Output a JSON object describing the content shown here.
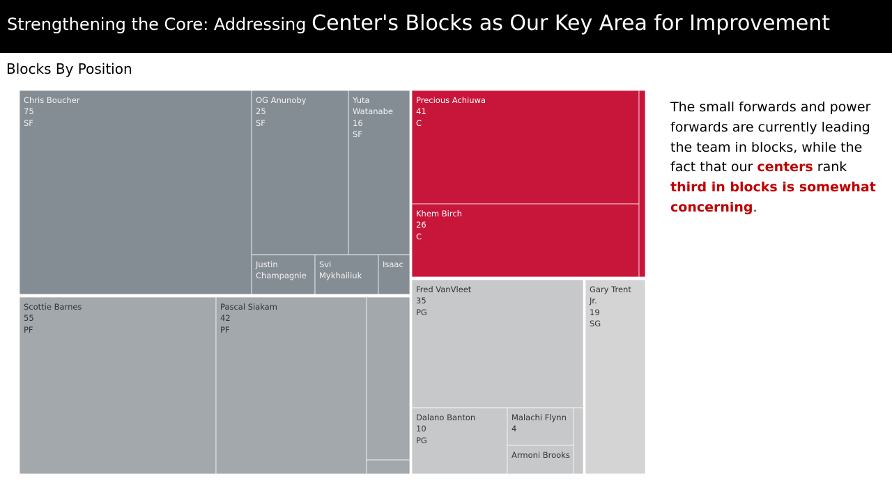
{
  "slide": {
    "title_prefix": "Strengthening the Core: Addressing ",
    "title_emphasis": "Center's Blocks as Our Key Area for Improvement"
  },
  "annotation": {
    "part1": "The small forwards and power forwards are currently leading the team in blocks, while the fact that our ",
    "hl1": "centers",
    "part2": " rank ",
    "hl2": "third in blocks is somewhat concerning",
    "part3": "."
  },
  "chart_data": {
    "type": "treemap",
    "title": "Blocks By Position",
    "colors": {
      "SF": "#858d94",
      "PF": "#a2a8ab",
      "C": "#c8163b",
      "PG": "#c7c8c9",
      "SG": "#d4d4d4",
      "highlight_text": "#c00000"
    },
    "groups": [
      {
        "position": "SF",
        "players": [
          {
            "name": "Chris Boucher",
            "blocks": 75,
            "label": [
              "Chris Boucher",
              "75",
              "SF"
            ]
          },
          {
            "name": "OG Anunoby",
            "blocks": 25,
            "label": [
              "OG Anunoby",
              "25",
              "SF"
            ]
          },
          {
            "name": "Yuta Watanabe",
            "blocks": 16,
            "label": [
              "Yuta",
              "Watanabe",
              "16",
              "SF"
            ]
          },
          {
            "name": "Justin Champagnie",
            "blocks": 6,
            "label": [
              "Justin",
              "Champagnie"
            ]
          },
          {
            "name": "Svi Mykhailiuk",
            "blocks": 6,
            "label": [
              "Svi",
              "Mykhailiuk"
            ]
          },
          {
            "name": "Isaac",
            "blocks": 3,
            "label": [
              "Isaac"
            ]
          }
        ]
      },
      {
        "position": "PF",
        "players": [
          {
            "name": "Scottie Barnes",
            "blocks": 55,
            "label": [
              "Scottie Barnes",
              "55",
              "PF"
            ]
          },
          {
            "name": "Pascal Siakam",
            "blocks": 42,
            "label": [
              "Pascal Siakam",
              "42",
              "PF"
            ]
          },
          {
            "name": "",
            "blocks": 10,
            "label": []
          },
          {
            "name": "",
            "blocks": 2,
            "label": []
          }
        ]
      },
      {
        "position": "C",
        "players": [
          {
            "name": "Precious Achiuwa",
            "blocks": 41,
            "label": [
              "Precious Achiuwa",
              "41",
              "C"
            ]
          },
          {
            "name": "Khem Birch",
            "blocks": 26,
            "label": [
              "Khem Birch",
              "26",
              "C"
            ]
          },
          {
            "name": "",
            "blocks": 2,
            "label": []
          }
        ]
      },
      {
        "position": "PG",
        "players": [
          {
            "name": "Fred VanVleet",
            "blocks": 35,
            "label": [
              "Fred VanVleet",
              "35",
              "PG"
            ]
          },
          {
            "name": "Dalano Banton",
            "blocks": 10,
            "label": [
              "Dalano Banton",
              "10",
              "PG"
            ]
          },
          {
            "name": "Malachi Flynn",
            "blocks": 4,
            "label": [
              "Malachi Flynn",
              "4"
            ]
          },
          {
            "name": "Armoni Brooks",
            "blocks": 3,
            "label": [
              "Armoni Brooks"
            ]
          },
          {
            "name": "",
            "blocks": 1,
            "label": []
          }
        ]
      },
      {
        "position": "SG",
        "players": [
          {
            "name": "Gary Trent Jr.",
            "blocks": 19,
            "label": [
              "Gary Trent",
              "Jr.",
              "19",
              "SG"
            ]
          }
        ]
      }
    ]
  }
}
